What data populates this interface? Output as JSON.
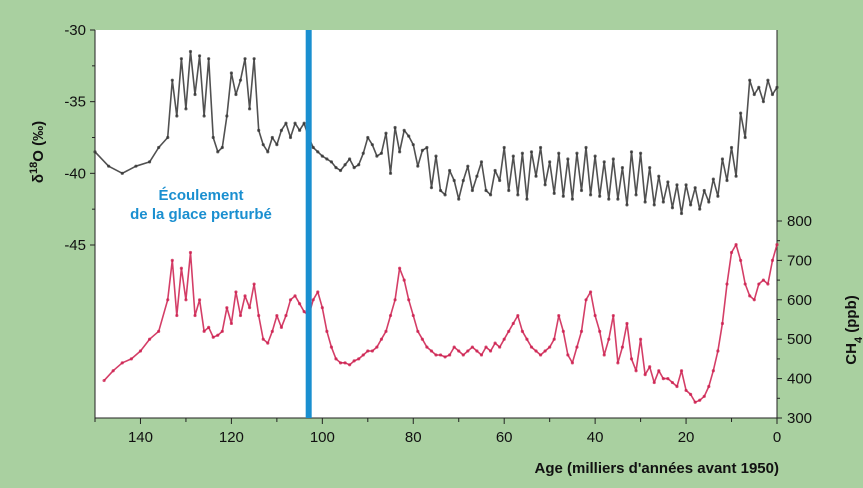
{
  "chart_data": {
    "type": "line",
    "title": "",
    "xlabel": "Age (milliers d'années avant 1950)",
    "ylabel_left": "δ18O (‰)",
    "ylabel_right": "CH4 (ppb)",
    "xlim": [
      150,
      0
    ],
    "x_ticks": [
      140,
      120,
      100,
      80,
      60,
      40,
      20,
      0
    ],
    "ylim_left": [
      -30,
      -45
    ],
    "y_ticks_left": [
      -30,
      -35,
      -40,
      -45
    ],
    "ylim_right": [
      300,
      800
    ],
    "y_ticks_right": [
      300,
      400,
      500,
      600,
      700,
      800
    ],
    "grid": false,
    "legend": "none",
    "marker_line": {
      "x": 103,
      "color": "#1a8fd0"
    },
    "annotation": [
      "Écoulement",
      "de la glace perturbé"
    ],
    "series": [
      {
        "axis": "left",
        "color": "#333333",
        "x": [
          150,
          147,
          144,
          141,
          138,
          136,
          134,
          133,
          132,
          131,
          130,
          129,
          128,
          127,
          126,
          125,
          124,
          123,
          122,
          121,
          120,
          119,
          118,
          117,
          116,
          115,
          114,
          113,
          112,
          111,
          110,
          109,
          108,
          107,
          106,
          105,
          104,
          103,
          102,
          101,
          100,
          99,
          98,
          97,
          96,
          95,
          94,
          93,
          92,
          91,
          90,
          89,
          88,
          87,
          86,
          85,
          84,
          83,
          82,
          81,
          80,
          79,
          78,
          77,
          76,
          75,
          74,
          73,
          72,
          71,
          70,
          69,
          68,
          67,
          66,
          65,
          64,
          63,
          62,
          61,
          60,
          59,
          58,
          57,
          56,
          55,
          54,
          53,
          52,
          51,
          50,
          49,
          48,
          47,
          46,
          45,
          44,
          43,
          42,
          41,
          40,
          39,
          38,
          37,
          36,
          35,
          34,
          33,
          32,
          31,
          30,
          29,
          28,
          27,
          26,
          25,
          24,
          23,
          22,
          21,
          20,
          19,
          18,
          17,
          16,
          15,
          14,
          13,
          12,
          11,
          10,
          9,
          8,
          7,
          6,
          5,
          4,
          3,
          2,
          1,
          0
        ],
        "values": [
          -38.5,
          -39.5,
          -40,
          -39.5,
          -39.2,
          -38.2,
          -37.5,
          -33.5,
          -36,
          -32,
          -35.5,
          -31.5,
          -34.5,
          -31.8,
          -36,
          -32,
          -37.5,
          -38.5,
          -38.2,
          -36,
          -33,
          -34.5,
          -33.5,
          -32,
          -35.5,
          -32,
          -37,
          -38,
          -38.5,
          -37.5,
          -38,
          -37,
          -36.5,
          -37.5,
          -36.5,
          -37,
          -36.5,
          -37.5,
          -38.2,
          -38.5,
          -38.8,
          -39,
          -39.2,
          -39.6,
          -39.8,
          -39.4,
          -39,
          -39.6,
          -39.4,
          -38.6,
          -37.5,
          -38,
          -38.8,
          -38.6,
          -37.2,
          -40,
          -36.8,
          -38.5,
          -37,
          -37.4,
          -38,
          -39.5,
          -38.4,
          -38.2,
          -41,
          -38.8,
          -41.2,
          -41.5,
          -39.8,
          -40.5,
          -41.8,
          -40.5,
          -39.5,
          -41.2,
          -40.2,
          -39.2,
          -41.2,
          -41.5,
          -39.8,
          -40.5,
          -38.2,
          -41.2,
          -38.8,
          -41.5,
          -38.6,
          -41.8,
          -38.5,
          -40.2,
          -38.2,
          -40.8,
          -39.2,
          -41.4,
          -38.6,
          -41.6,
          -39,
          -41.8,
          -38.6,
          -41.2,
          -38.2,
          -41.5,
          -38.8,
          -41.6,
          -39.2,
          -41.8,
          -39,
          -41.8,
          -39.6,
          -42.2,
          -38.5,
          -41.5,
          -38.6,
          -42,
          -39.6,
          -42.2,
          -40.2,
          -42,
          -40.6,
          -42.4,
          -40.8,
          -42.8,
          -40.8,
          -42.2,
          -41,
          -42.5,
          -41.2,
          -42,
          -40.4,
          -41.6,
          -39,
          -40.5,
          -38.2,
          -40.2,
          -35.8,
          -37.5,
          -33.5,
          -34.5,
          -34,
          -35,
          -33.5,
          -34.5,
          -34
        ]
      },
      {
        "axis": "right",
        "color": "#cc1c4c",
        "x": [
          148,
          146,
          144,
          142,
          140,
          138,
          136,
          134,
          133,
          132,
          131,
          130,
          129,
          128,
          127,
          126,
          125,
          124,
          123,
          122,
          121,
          120,
          119,
          118,
          117,
          116,
          115,
          114,
          113,
          112,
          111,
          110,
          109,
          108,
          107,
          106,
          105,
          104,
          103,
          102,
          101,
          100,
          99,
          98,
          97,
          96,
          95,
          94,
          93,
          92,
          91,
          90,
          89,
          88,
          87,
          86,
          85,
          84,
          83,
          82,
          81,
          80,
          79,
          78,
          77,
          76,
          75,
          74,
          73,
          72,
          71,
          70,
          69,
          68,
          67,
          66,
          65,
          64,
          63,
          62,
          61,
          60,
          59,
          58,
          57,
          56,
          55,
          54,
          53,
          52,
          51,
          50,
          49,
          48,
          47,
          46,
          45,
          44,
          43,
          42,
          41,
          40,
          39,
          38,
          37,
          36,
          35,
          34,
          33,
          32,
          31,
          30,
          29,
          28,
          27,
          26,
          25,
          24,
          23,
          22,
          21,
          20,
          19,
          18,
          17,
          16,
          15,
          14,
          13,
          12,
          11,
          10,
          9,
          8,
          7,
          6,
          5,
          4,
          3,
          2,
          1,
          0
        ],
        "values": [
          395,
          420,
          440,
          450,
          470,
          500,
          520,
          600,
          700,
          560,
          680,
          600,
          720,
          560,
          600,
          520,
          530,
          505,
          510,
          520,
          580,
          540,
          620,
          560,
          610,
          580,
          640,
          560,
          500,
          490,
          520,
          560,
          530,
          560,
          600,
          610,
          590,
          570,
          560,
          600,
          620,
          580,
          520,
          480,
          450,
          440,
          440,
          435,
          445,
          450,
          460,
          470,
          470,
          480,
          500,
          520,
          560,
          600,
          680,
          650,
          600,
          560,
          520,
          500,
          480,
          470,
          460,
          460,
          455,
          460,
          480,
          470,
          460,
          470,
          480,
          470,
          460,
          480,
          470,
          490,
          480,
          500,
          520,
          540,
          560,
          520,
          500,
          480,
          470,
          460,
          470,
          480,
          500,
          560,
          520,
          460,
          440,
          480,
          520,
          600,
          620,
          560,
          520,
          460,
          500,
          560,
          440,
          480,
          540,
          450,
          420,
          500,
          410,
          430,
          390,
          420,
          400,
          400,
          390,
          380,
          420,
          370,
          360,
          340,
          345,
          355,
          380,
          420,
          470,
          540,
          640,
          720,
          740,
          700,
          640,
          610,
          600,
          640,
          650,
          640,
          700,
          740
        ]
      }
    ]
  }
}
